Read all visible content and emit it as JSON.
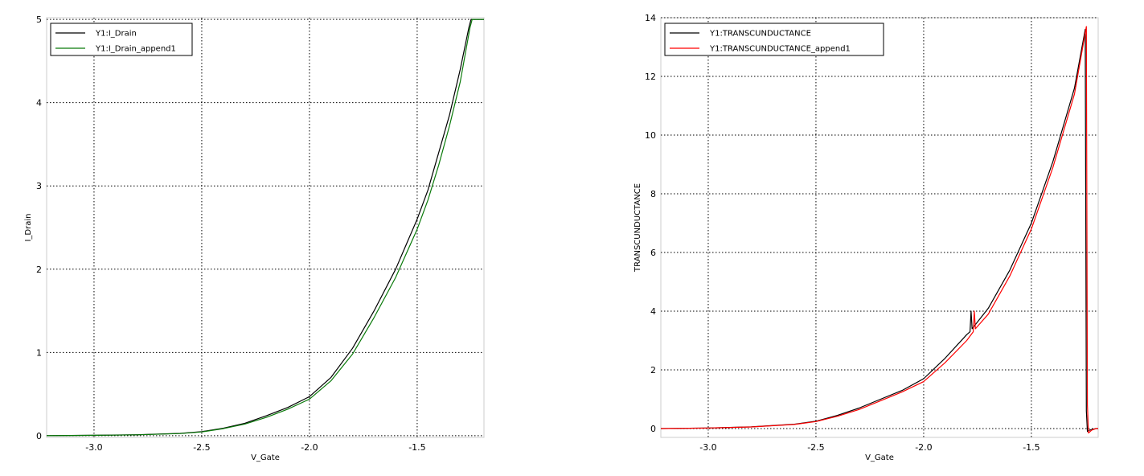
{
  "chart_data": [
    {
      "type": "line",
      "xlabel": "V_Gate",
      "ylabel": "I_Drain",
      "xlim": [
        -3.22,
        -1.19
      ],
      "ylim": [
        -0.02,
        5.02
      ],
      "xticks": [
        -3.0,
        -2.5,
        -2.0,
        -1.5
      ],
      "xtick_labels": [
        "-3.0",
        "-2.5",
        "-2.0",
        "-1.5"
      ],
      "yticks": [
        0,
        1,
        2,
        3,
        4,
        5
      ],
      "ytick_labels": [
        "0",
        "1",
        "2",
        "3",
        "4",
        "5"
      ],
      "grid": true,
      "legend_position": "top-left",
      "series": [
        {
          "name": "Y1:I_Drain",
          "color": "#000000",
          "x": [
            -3.22,
            -3.0,
            -2.8,
            -2.6,
            -2.5,
            -2.4,
            -2.3,
            -2.2,
            -2.1,
            -2.0,
            -1.9,
            -1.8,
            -1.7,
            -1.6,
            -1.5,
            -1.45,
            -1.4,
            -1.35,
            -1.3,
            -1.26,
            -1.25,
            -1.19
          ],
          "y": [
            0.0,
            0.005,
            0.012,
            0.028,
            0.05,
            0.09,
            0.15,
            0.24,
            0.34,
            0.47,
            0.7,
            1.05,
            1.5,
            2.0,
            2.6,
            2.95,
            3.4,
            3.85,
            4.4,
            4.9,
            5.0,
            5.0
          ]
        },
        {
          "name": "Y1:I_Drain_append1",
          "color": "#0a7a0a",
          "x": [
            -3.22,
            -3.0,
            -2.8,
            -2.6,
            -2.5,
            -2.4,
            -2.3,
            -2.2,
            -2.1,
            -2.0,
            -1.9,
            -1.8,
            -1.7,
            -1.6,
            -1.5,
            -1.45,
            -1.4,
            -1.35,
            -1.3,
            -1.255,
            -1.245,
            -1.19
          ],
          "y": [
            0.0,
            0.005,
            0.011,
            0.026,
            0.046,
            0.085,
            0.14,
            0.22,
            0.32,
            0.44,
            0.66,
            0.98,
            1.42,
            1.9,
            2.48,
            2.83,
            3.25,
            3.72,
            4.25,
            4.9,
            5.0,
            5.0
          ]
        }
      ]
    },
    {
      "type": "line",
      "xlabel": "V_Gate",
      "ylabel": "TRANSCUNDUCTANCE",
      "xlim": [
        -3.22,
        -1.19
      ],
      "ylim": [
        -0.3,
        14.0
      ],
      "xticks": [
        -3.0,
        -2.5,
        -2.0,
        -1.5
      ],
      "xtick_labels": [
        "-3.0",
        "-2.5",
        "-2.0",
        "-1.5"
      ],
      "yticks": [
        0,
        2,
        4,
        6,
        8,
        10,
        12,
        14
      ],
      "ytick_labels": [
        "0",
        "2",
        "4",
        "6",
        "8",
        "10",
        "12",
        "14"
      ],
      "grid": true,
      "legend_position": "top-left",
      "series": [
        {
          "name": "Y1:TRANSCUNDUCTANCE",
          "color": "#000000",
          "x": [
            -3.22,
            -3.0,
            -2.8,
            -2.6,
            -2.5,
            -2.4,
            -2.3,
            -2.2,
            -2.1,
            -2.0,
            -1.9,
            -1.8,
            -1.785,
            -1.78,
            -1.775,
            -1.7,
            -1.6,
            -1.5,
            -1.4,
            -1.3,
            -1.25,
            -1.245,
            -1.24,
            -1.23,
            -1.2,
            -1.19
          ],
          "y": [
            0.0,
            0.02,
            0.06,
            0.15,
            0.25,
            0.45,
            0.7,
            1.0,
            1.3,
            1.7,
            2.4,
            3.2,
            3.3,
            4.0,
            3.4,
            4.1,
            5.4,
            7.0,
            9.1,
            11.6,
            13.6,
            0.6,
            -0.1,
            -0.05,
            0.0,
            0.0
          ]
        },
        {
          "name": "Y1:TRANSCUNDUCTANCE_append1",
          "color": "#ff0000",
          "x": [
            -3.22,
            -3.0,
            -2.8,
            -2.6,
            -2.5,
            -2.4,
            -2.3,
            -2.2,
            -2.1,
            -2.0,
            -1.9,
            -1.8,
            -1.77,
            -1.765,
            -1.76,
            -1.7,
            -1.6,
            -1.5,
            -1.4,
            -1.3,
            -1.245,
            -1.24,
            -1.235,
            -1.22,
            -1.2,
            -1.19
          ],
          "y": [
            0.0,
            0.02,
            0.055,
            0.14,
            0.24,
            0.42,
            0.65,
            0.95,
            1.25,
            1.6,
            2.25,
            3.0,
            3.3,
            4.0,
            3.4,
            3.9,
            5.2,
            6.8,
            8.9,
            11.4,
            13.7,
            0.8,
            -0.15,
            -0.05,
            0.0,
            0.0
          ]
        }
      ]
    }
  ]
}
